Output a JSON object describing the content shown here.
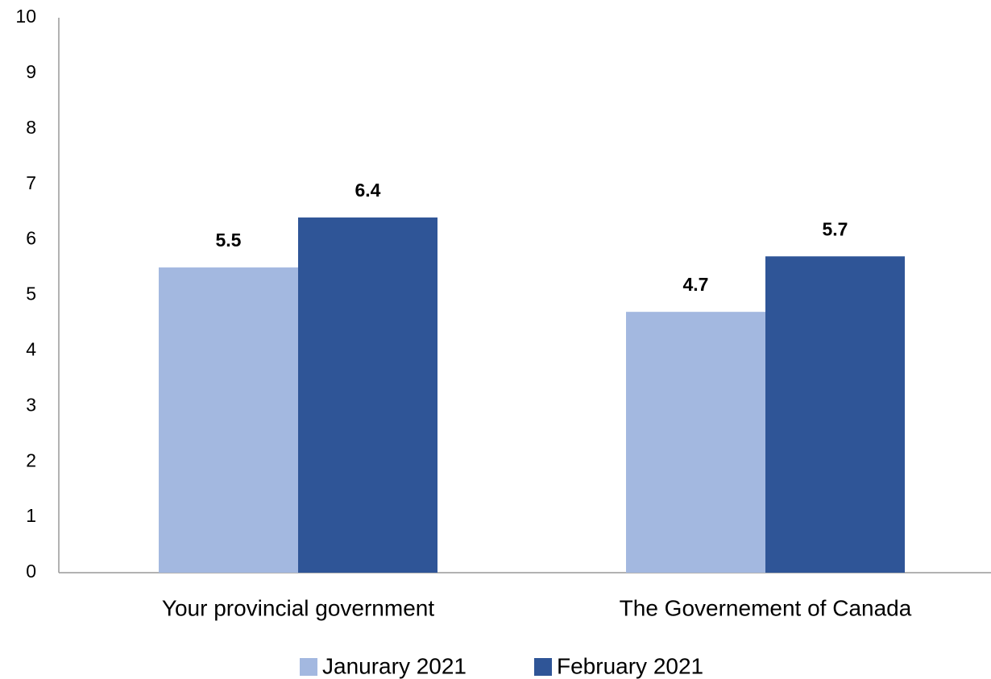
{
  "chart_data": {
    "type": "bar",
    "categories": [
      "Your provincial government",
      "The Governement of Canada"
    ],
    "series": [
      {
        "name": "Janurary 2021",
        "color": "#a3b8e0",
        "values": [
          5.5,
          4.7
        ]
      },
      {
        "name": "February 2021",
        "color": "#2f5597",
        "values": [
          6.4,
          5.7
        ]
      }
    ],
    "ylim": [
      0,
      10
    ],
    "yticks": [
      0,
      1,
      2,
      3,
      4,
      5,
      6,
      7,
      8,
      9,
      10
    ],
    "grid": false,
    "legend": "bottom"
  }
}
